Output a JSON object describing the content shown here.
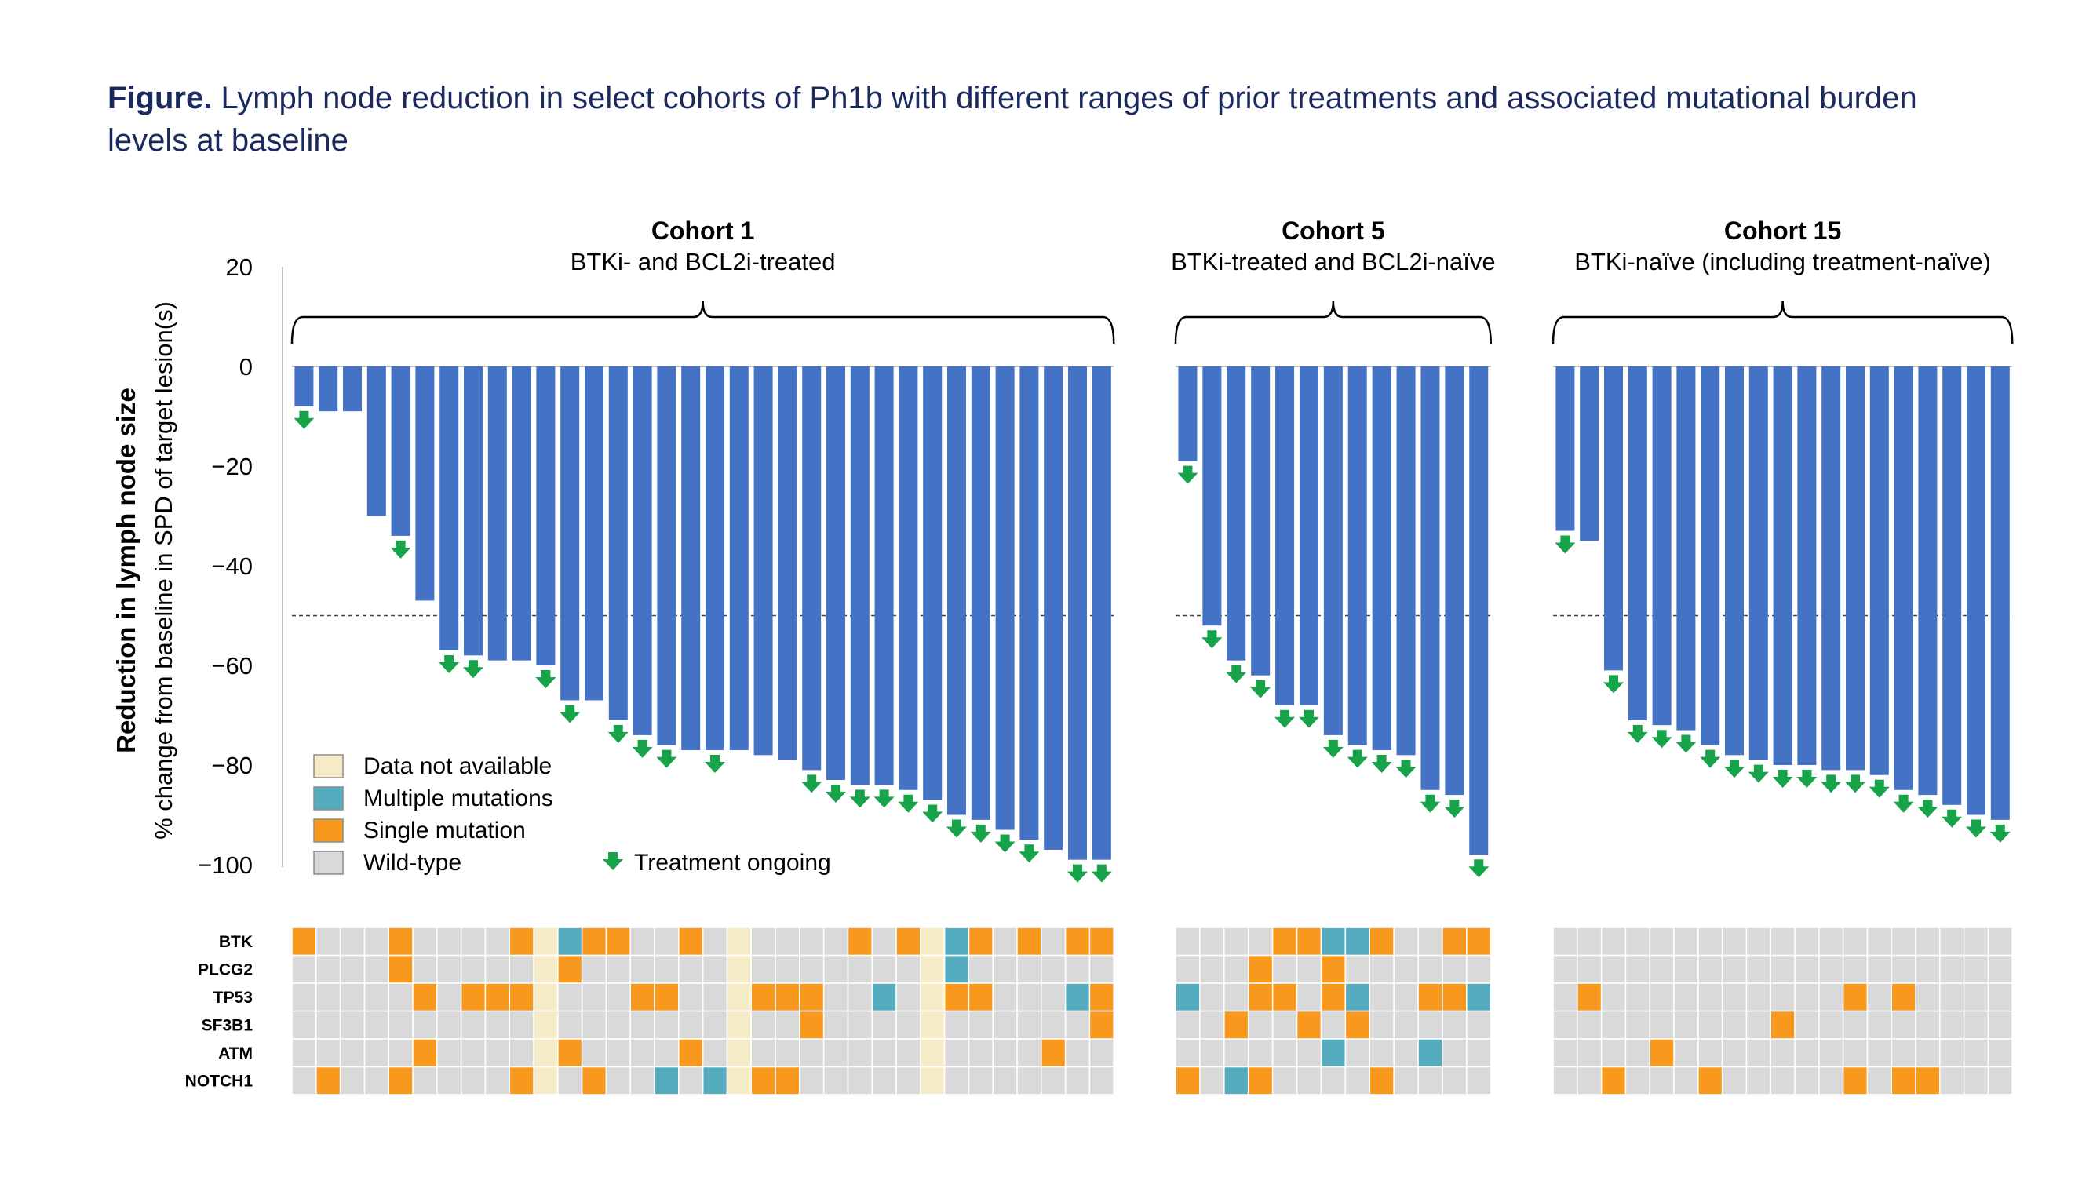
{
  "figure": {
    "label": "Figure.",
    "caption": "Lymph node reduction in select cohorts of Ph1b with different ranges of prior treatments and associated mutational burden levels at baseline"
  },
  "colors": {
    "bar": "#4472c4",
    "arrow": "#16a34a",
    "data_not_available": "#f5ecc7",
    "multiple_mutations": "#56acbf",
    "single_mutation": "#f8991d",
    "wild_type": "#d9d9d9"
  },
  "chart_data": {
    "type": "bar",
    "ylabel": "Reduction in lymph node size",
    "ylabel_sub": "% change from baseline in SPD of target lesion(s)",
    "ylim": [
      -100,
      20
    ],
    "yticks": [
      "20",
      "0",
      "−20",
      "−40",
      "−60",
      "−80",
      "−100"
    ],
    "ytick_values": [
      20,
      0,
      -20,
      -40,
      -60,
      -80,
      -100
    ],
    "reference_line": -50,
    "legend": {
      "placement": "bottom-left",
      "items": [
        {
          "label": "Data not available",
          "color_key": "data_not_available"
        },
        {
          "label": "Multiple mutations",
          "color_key": "multiple_mutations"
        },
        {
          "label": "Single mutation",
          "color_key": "single_mutation"
        },
        {
          "label": "Wild-type",
          "color_key": "wild_type"
        }
      ],
      "ongoing_label": "Treatment ongoing"
    },
    "genes": [
      "BTK",
      "PLCG2",
      "TP53",
      "SF3B1",
      "ATM",
      "NOTCH1"
    ],
    "cohorts": [
      {
        "title": "Cohort 1",
        "subtitle": "BTKi- and BCL2i-treated",
        "values": [
          -8,
          -9,
          -9,
          -30,
          -34,
          -47,
          -57,
          -58,
          -59,
          -59,
          -60,
          -67,
          -67,
          -71,
          -74,
          -76,
          -77,
          -77,
          -77,
          -78,
          -79,
          -81,
          -83,
          -84,
          -84,
          -85,
          -87,
          -90,
          -91,
          -93,
          -95,
          -97,
          -99,
          -99
        ],
        "ongoing": [
          1,
          0,
          0,
          0,
          1,
          0,
          1,
          1,
          0,
          0,
          1,
          1,
          0,
          1,
          1,
          1,
          0,
          1,
          0,
          0,
          0,
          1,
          1,
          1,
          1,
          1,
          1,
          1,
          1,
          1,
          1,
          0,
          1,
          1
        ],
        "mutations": [
          "SWWWSWWWWSNMSSWWSWNWWWWSWSNMSWSWSS",
          "WWWWSWWWWWNSWWWWWWNWWWWWWWNMWWWWWW",
          "WWWWWSWSSSNWWWSSWWNSSSWWMWNSSWWWMS",
          "WWWWWWWWWWNWWWWWWWNWWSWWWWNWWWWWWS",
          "WWWWWSWWWWNSWWWWSWNWWWWWWWNWWWWSWW",
          "WSWWSWWWWSNWSWWMWMNSSWWWWWNWWWWWWW"
        ]
      },
      {
        "title": "Cohort 5",
        "subtitle": "BTKi-treated and BCL2i-naïve",
        "values": [
          -19,
          -52,
          -59,
          -62,
          -68,
          -68,
          -74,
          -76,
          -77,
          -78,
          -85,
          -86,
          -98
        ],
        "ongoing": [
          1,
          1,
          1,
          1,
          1,
          1,
          1,
          1,
          1,
          1,
          1,
          1,
          1
        ],
        "mutations": [
          "WWWWSSMMSWWSS",
          "WWWSWWSWWWWWW",
          "MWWSSWSMWWSSM",
          "WWSWWSWSWWWWW",
          "WWWWWWMWWWMWW",
          "SWMSWWWWSWWWW"
        ]
      },
      {
        "title": "Cohort 15",
        "subtitle": "BTKi-naïve (including treatment-naïve)",
        "values": [
          -33,
          -35,
          -61,
          -71,
          -72,
          -73,
          -76,
          -78,
          -79,
          -80,
          -80,
          -81,
          -81,
          -82,
          -85,
          -86,
          -88,
          -90,
          -91
        ],
        "ongoing": [
          1,
          0,
          1,
          1,
          1,
          1,
          1,
          1,
          1,
          1,
          1,
          1,
          1,
          1,
          1,
          1,
          1,
          1,
          1
        ],
        "mutations": [
          "WWWWWWWWWWWWWWWWWWW",
          "WWWWWWWWWWWWWWWWWWW",
          "WSWWWWWWWWWWSWSWWWW",
          "WWWWWWWWWSWWWWWWWWW",
          "WWWWSWWWWWWWWWWWWWW",
          "WWSWWWSWWWWWSWSSWWW"
        ]
      }
    ]
  }
}
